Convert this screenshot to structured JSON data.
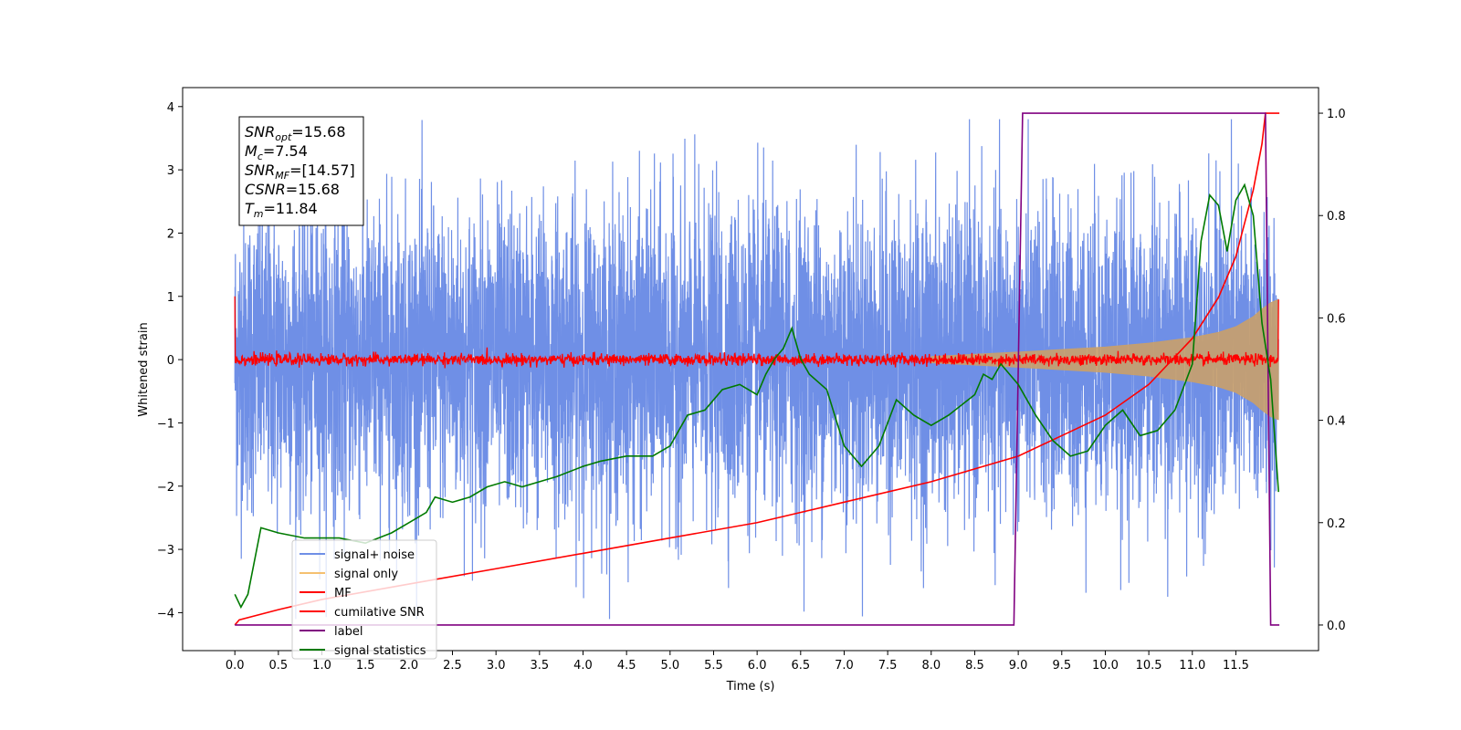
{
  "chart_data": {
    "type": "line",
    "xlabel": "Time (s)",
    "ylabel": "Whitened strain",
    "xlim": [
      -0.6,
      12.45
    ],
    "ylim": [
      -4.6,
      4.3
    ],
    "ylim_right": [
      -0.05,
      1.05
    ],
    "x_ticks": [
      "0.0",
      "0.5",
      "1.0",
      "1.5",
      "2.0",
      "2.5",
      "3.0",
      "3.5",
      "4.0",
      "4.5",
      "5.0",
      "5.5",
      "6.0",
      "6.5",
      "7.0",
      "7.5",
      "8.0",
      "8.5",
      "9.0",
      "9.5",
      "10.0",
      "10.5",
      "11.0",
      "11.5"
    ],
    "y_ticks": [
      "4",
      "3",
      "2",
      "1",
      "0",
      "−1",
      "−2",
      "−3",
      "−4"
    ],
    "y_ticks_right": [
      "1.0",
      "0.8",
      "0.6",
      "0.4",
      "0.2",
      "0.0"
    ],
    "legend_position": "lower-left",
    "legend": [
      {
        "label": "signal+ noise",
        "color": "#6f8fe6"
      },
      {
        "label": "signal only",
        "color": "#f5c070"
      },
      {
        "label": "MF",
        "color": "#ff0000"
      },
      {
        "label": "cumilative SNR",
        "color": "#ff0000"
      },
      {
        "label": "label",
        "color": "#800080"
      },
      {
        "label": "signal statistics",
        "color": "#007a00"
      }
    ],
    "annotation": {
      "lines": [
        {
          "main": "SNR",
          "sub": "opt",
          "rest": "=15.68"
        },
        {
          "main": "M",
          "sub": "c",
          "rest": "=7.54"
        },
        {
          "main": "SNR",
          "sub": "MF",
          "rest": "=[14.57]"
        },
        {
          "main": "CSNR",
          "sub": "",
          "rest": "=15.68"
        },
        {
          "main": "T",
          "sub": "m",
          "rest": "=11.84"
        }
      ]
    },
    "series": [
      {
        "name": "signal+ noise",
        "axis": "left",
        "color": "#6f8fe6",
        "noise_band": {
          "x_start": 0.0,
          "x_end": 11.99,
          "amplitude": 1.2,
          "peak_max": 3.8,
          "peak_min": -4.1
        }
      },
      {
        "name": "signal only",
        "axis": "left",
        "color": "#c9a06a",
        "envelope": {
          "x": [
            8.0,
            9.0,
            10.0,
            10.5,
            11.0,
            11.3,
            11.5,
            11.7,
            11.8,
            11.9,
            11.99
          ],
          "amp": [
            0.05,
            0.12,
            0.2,
            0.26,
            0.35,
            0.43,
            0.52,
            0.68,
            0.8,
            0.9,
            0.95
          ]
        }
      },
      {
        "name": "MF",
        "axis": "left",
        "color": "#ff0000",
        "noise_band": {
          "x_start": 0.0,
          "x_end": 11.99,
          "amplitude": 0.1,
          "start_spike": 1.0,
          "end_spike": 0.95
        }
      },
      {
        "name": "cumilative SNR",
        "axis": "right",
        "color": "#ff0000",
        "x": [
          0.0,
          0.05,
          0.5,
          1.0,
          2.0,
          3.0,
          4.0,
          5.0,
          6.0,
          7.0,
          8.0,
          9.0,
          9.5,
          10.0,
          10.5,
          11.0,
          11.3,
          11.5,
          11.7,
          11.8,
          11.84,
          12.0
        ],
        "y": [
          0.0,
          0.01,
          0.03,
          0.05,
          0.08,
          0.11,
          0.14,
          0.17,
          0.2,
          0.24,
          0.28,
          0.33,
          0.37,
          0.41,
          0.47,
          0.56,
          0.64,
          0.72,
          0.85,
          0.94,
          1.0,
          1.0
        ]
      },
      {
        "name": "label",
        "axis": "right",
        "color": "#800080",
        "x": [
          0.0,
          8.95,
          9.05,
          11.84,
          11.9,
          12.0
        ],
        "y": [
          0.0,
          0.0,
          1.0,
          1.0,
          0.0,
          0.0
        ]
      },
      {
        "name": "signal statistics",
        "axis": "right",
        "color": "#007a00",
        "x": [
          0.0,
          0.07,
          0.15,
          0.3,
          0.5,
          0.8,
          1.0,
          1.2,
          1.5,
          1.8,
          2.0,
          2.2,
          2.3,
          2.5,
          2.7,
          2.9,
          3.1,
          3.3,
          3.5,
          3.7,
          4.0,
          4.2,
          4.5,
          4.8,
          5.0,
          5.2,
          5.4,
          5.6,
          5.8,
          6.0,
          6.1,
          6.2,
          6.3,
          6.4,
          6.5,
          6.6,
          6.8,
          7.0,
          7.2,
          7.4,
          7.6,
          7.8,
          8.0,
          8.2,
          8.5,
          8.6,
          8.7,
          8.8,
          8.9,
          9.0,
          9.2,
          9.4,
          9.6,
          9.8,
          10.0,
          10.2,
          10.4,
          10.6,
          10.8,
          11.0,
          11.1,
          11.2,
          11.3,
          11.4,
          11.5,
          11.6,
          11.7,
          11.8,
          11.9,
          11.99
        ],
        "y": [
          0.06,
          0.035,
          0.06,
          0.19,
          0.18,
          0.17,
          0.17,
          0.17,
          0.16,
          0.18,
          0.2,
          0.22,
          0.25,
          0.24,
          0.25,
          0.27,
          0.28,
          0.27,
          0.28,
          0.29,
          0.31,
          0.32,
          0.33,
          0.33,
          0.35,
          0.41,
          0.42,
          0.46,
          0.47,
          0.45,
          0.49,
          0.52,
          0.54,
          0.58,
          0.52,
          0.49,
          0.46,
          0.35,
          0.31,
          0.35,
          0.44,
          0.41,
          0.39,
          0.41,
          0.45,
          0.49,
          0.48,
          0.51,
          0.49,
          0.47,
          0.41,
          0.36,
          0.33,
          0.34,
          0.39,
          0.42,
          0.37,
          0.38,
          0.42,
          0.51,
          0.75,
          0.84,
          0.82,
          0.73,
          0.83,
          0.86,
          0.8,
          0.59,
          0.48,
          0.26
        ]
      }
    ]
  }
}
